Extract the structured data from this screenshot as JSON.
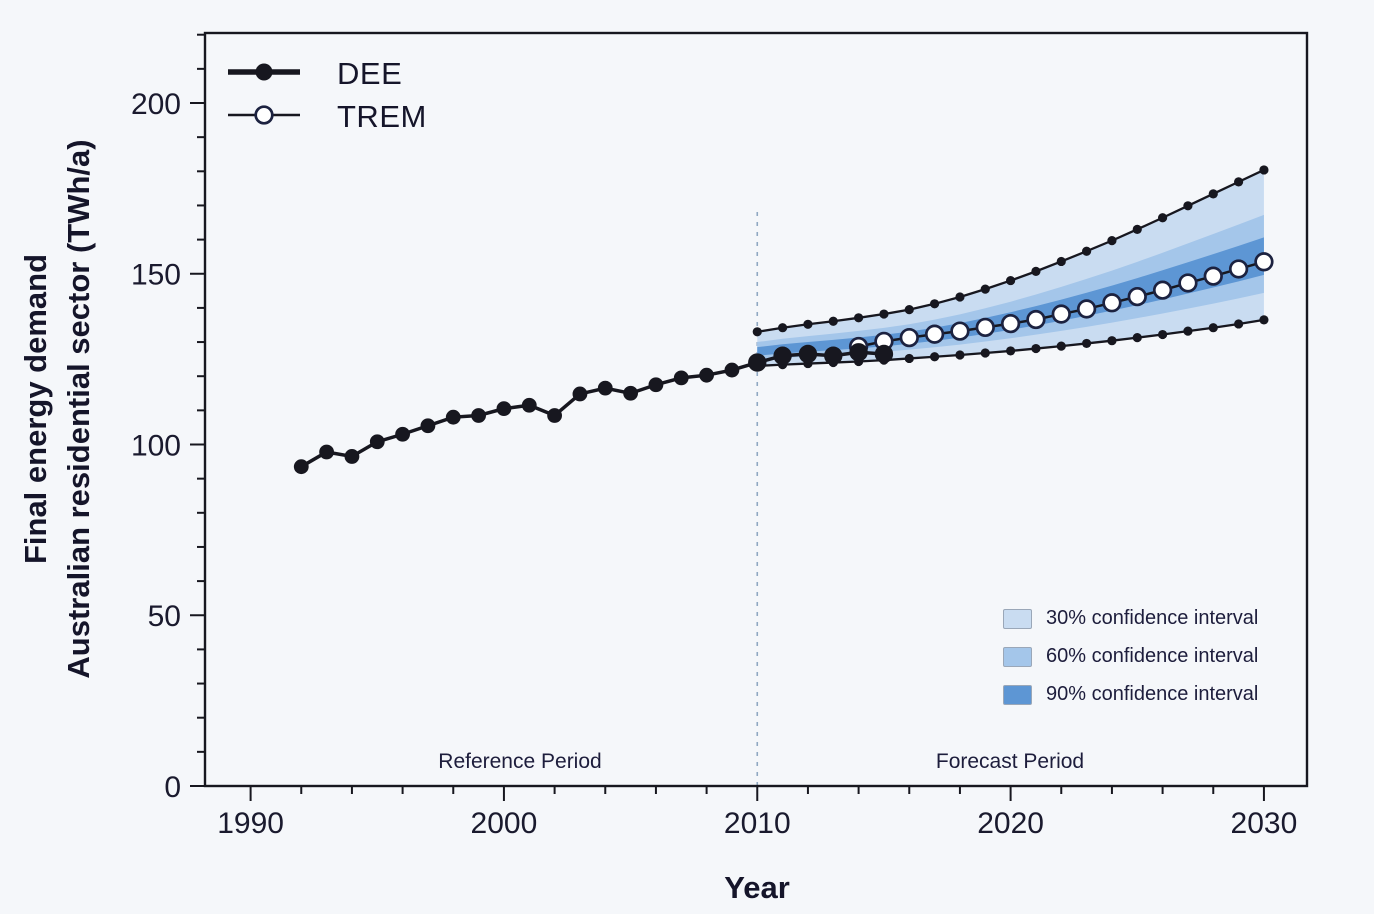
{
  "page": {
    "background": "#f5f7fa"
  },
  "legend": {
    "items": [
      {
        "label": "DEE",
        "marker": "filled-circle"
      },
      {
        "label": "TREM",
        "marker": "open-circle"
      }
    ]
  },
  "ci_legend": [
    {
      "label": "30% confidence interval",
      "color": "#c9dcf1"
    },
    {
      "label": "60% confidence interval",
      "color": "#a4c6ea"
    },
    {
      "label": "90% confidence interval",
      "color": "#5d96d4"
    }
  ],
  "annotations": {
    "reference_period": "Reference Period",
    "forecast_period": "Forecast Period",
    "forecast_start_year": 2010
  },
  "axes": {
    "x": {
      "title": "Year",
      "min": 1988.2,
      "max": 2031.7,
      "major_ticks": [
        1990,
        2000,
        2010,
        2020,
        2030
      ],
      "minor_step": 2
    },
    "y": {
      "title_line1": "Final energy demand",
      "title_line2": "Australian residential sector (TWh/a)",
      "min": 0,
      "max": 220.5,
      "major_ticks": [
        0,
        50,
        100,
        150,
        200
      ],
      "minor_step": 10
    }
  },
  "chart_data": {
    "type": "line",
    "title": "",
    "xlabel": "Year",
    "ylabel": "Final energy demand Australian residential sector (TWh/a)",
    "xlim": [
      1988.2,
      2031.7
    ],
    "ylim": [
      0,
      220.5
    ],
    "grid": false,
    "legend_position": "top-left",
    "series": [
      {
        "name": "DEE",
        "years": [
          1992,
          1993,
          1994,
          1995,
          1996,
          1997,
          1998,
          1999,
          2000,
          2001,
          2002,
          2003,
          2004,
          2005,
          2006,
          2007,
          2008,
          2009,
          2010,
          2011,
          2012,
          2013,
          2014,
          2015
        ],
        "values": [
          93.5,
          97.8,
          96.5,
          100.8,
          103,
          105.5,
          108,
          108.5,
          110.5,
          111.5,
          108.5,
          114.8,
          116.5,
          115,
          117.5,
          119.5,
          120.3,
          121.8,
          124,
          126,
          126.5,
          126,
          127,
          126.5
        ]
      },
      {
        "name": "TREM",
        "years": [
          2014,
          2015,
          2016,
          2017,
          2018,
          2019,
          2020,
          2021,
          2022,
          2023,
          2024,
          2025,
          2026,
          2027,
          2028,
          2029,
          2030
        ],
        "values": [
          128.7,
          130.2,
          131.3,
          132.3,
          133.2,
          134.3,
          135.4,
          136.6,
          138.2,
          139.7,
          141.5,
          143.3,
          145.2,
          147.3,
          149.3,
          151.4,
          153.5
        ]
      }
    ],
    "forecast_band": {
      "years": [
        2010,
        2011,
        2012,
        2013,
        2014,
        2015,
        2016,
        2017,
        2018,
        2019,
        2020,
        2021,
        2022,
        2023,
        2024,
        2025,
        2026,
        2027,
        2028,
        2029,
        2030
      ],
      "upper": [
        133,
        134.2,
        135.2,
        136.1,
        137.1,
        138.2,
        139.5,
        141.2,
        143.2,
        145.5,
        148,
        150.7,
        153.6,
        156.6,
        159.7,
        163,
        166.4,
        169.9,
        173.4,
        176.9,
        180.4
      ],
      "lower": [
        123,
        123.4,
        123.7,
        124,
        124.3,
        124.7,
        125.2,
        125.7,
        126.2,
        126.8,
        127.4,
        128.1,
        128.8,
        129.6,
        130.4,
        131.3,
        132.2,
        133.2,
        134.2,
        135.3,
        136.5
      ],
      "band60_fractions": [
        0.18,
        0.7
      ],
      "band90_fractions": [
        0.3,
        0.55
      ]
    },
    "colors": {
      "line": "#17171f",
      "band30": "#c9dcf1",
      "band60": "#a4c6ea",
      "band90": "#5d96d4",
      "divider": "#90a8c2",
      "text": "#1a1a2e"
    }
  }
}
